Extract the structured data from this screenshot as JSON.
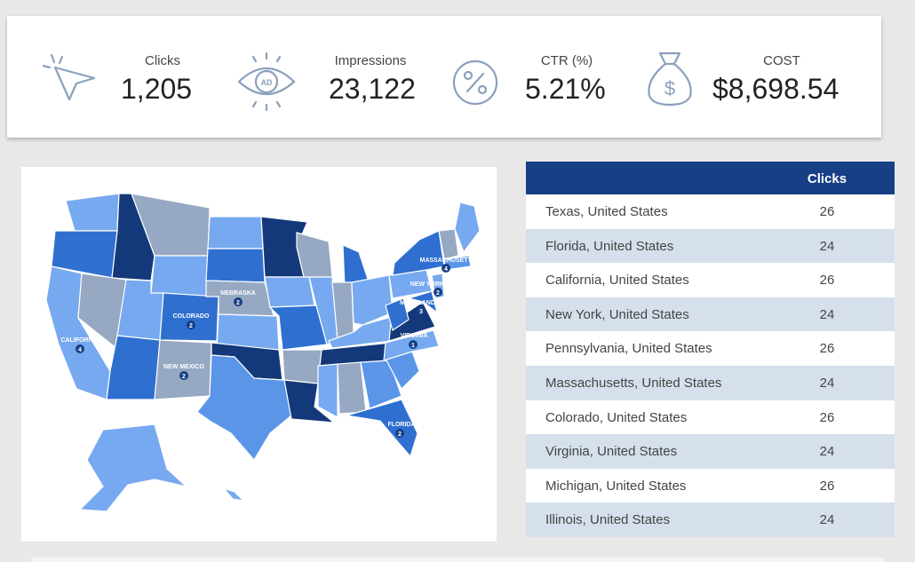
{
  "kpis": {
    "clicks": {
      "label": "Clicks",
      "value": "1,205",
      "icon": "cursor-arrow-icon"
    },
    "impressions": {
      "label": "Impressions",
      "value": "23,122",
      "icon": "eye-ad-icon",
      "icon_text": "AD"
    },
    "ctr": {
      "label": "CTR (%)",
      "value": "5.21%",
      "icon": "percent-circle-icon"
    },
    "cost": {
      "label": "COST",
      "value": "$8,698.54",
      "icon": "money-bag-icon"
    }
  },
  "map": {
    "labels": [
      {
        "state": "CALIFORNIA",
        "count": "4"
      },
      {
        "state": "COLORADO",
        "count": "2"
      },
      {
        "state": "NEBRASKA",
        "count": "2"
      },
      {
        "state": "NEW MEXICO",
        "count": "2"
      },
      {
        "state": "MASSACHUSETTS",
        "count": "4"
      },
      {
        "state": "NEW YORK",
        "count": "2"
      },
      {
        "state": "MARYLAND",
        "count": "3"
      },
      {
        "state": "VIRGINIA",
        "count": "1"
      },
      {
        "state": "FLORIDA",
        "count": "2"
      }
    ],
    "colors": {
      "darkest": "#14397a",
      "dark": "#2f6fd0",
      "medium": "#5b95e8",
      "light": "#76a9f0",
      "grey": "#96a8c2"
    }
  },
  "table": {
    "header": {
      "dimension": "",
      "metric": "Clicks"
    },
    "rows": [
      {
        "name": "Texas, United States",
        "value": "26"
      },
      {
        "name": "Florida, United States",
        "value": "24"
      },
      {
        "name": "California, United States",
        "value": "26"
      },
      {
        "name": "New York, United States",
        "value": "24"
      },
      {
        "name": "Pennsylvania, United States",
        "value": "26"
      },
      {
        "name": "Massachusetts, United States",
        "value": "24"
      },
      {
        "name": "Colorado, United States",
        "value": "26"
      },
      {
        "name": "Virginia, United States",
        "value": "24"
      },
      {
        "name": "Michigan, United States",
        "value": "26"
      },
      {
        "name": "Illinois, United States",
        "value": "24"
      }
    ]
  }
}
